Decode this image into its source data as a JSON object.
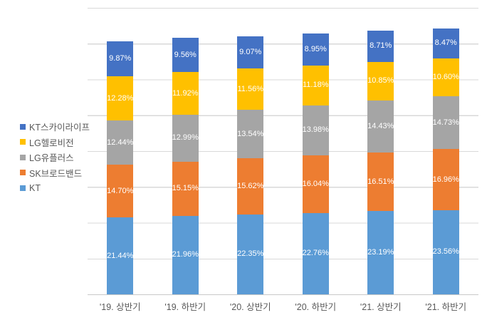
{
  "chart_data": {
    "type": "bar",
    "stacked": true,
    "title": "",
    "xlabel": "",
    "ylabel": "",
    "ylim": [
      0,
      80
    ],
    "grid_step": 10,
    "grid": true,
    "legend_position": "left",
    "categories": [
      "'19. 상반기",
      "'19. 하반기",
      "'20. 상반기",
      "'20. 하반기",
      "'21. 상반기",
      "'21. 하반기"
    ],
    "series": [
      {
        "name": "KT",
        "color": "#5B9BD5",
        "values": [
          21.44,
          21.96,
          22.35,
          22.76,
          23.19,
          23.56
        ],
        "labels": [
          "21.44%",
          "21.96%",
          "22.35%",
          "22.76%",
          "23.19%",
          "23.56%"
        ]
      },
      {
        "name": "SK브로드밴드",
        "color": "#ED7D31",
        "values": [
          14.7,
          15.15,
          15.62,
          16.04,
          16.51,
          16.96
        ],
        "labels": [
          "14.70%",
          "15.15%",
          "15.62%",
          "16.04%",
          "16.51%",
          "16.96%"
        ]
      },
      {
        "name": "LG유플러스",
        "color": "#A5A5A5",
        "values": [
          12.44,
          12.99,
          13.54,
          13.98,
          14.43,
          14.73
        ],
        "labels": [
          "12.44%",
          "12.99%",
          "13.54%",
          "13.98%",
          "14.43%",
          "14.73%"
        ]
      },
      {
        "name": "LG헬로비전",
        "color": "#FFC000",
        "values": [
          12.28,
          11.92,
          11.56,
          11.18,
          10.85,
          10.6
        ],
        "labels": [
          "12.28%",
          "11.92%",
          "11.56%",
          "11.18%",
          "10.85%",
          "10.60%"
        ]
      },
      {
        "name": "KT스카이라이프",
        "color": "#4472C4",
        "values": [
          9.87,
          9.56,
          9.07,
          8.95,
          8.71,
          8.47
        ],
        "labels": [
          "9.87%",
          "9.56%",
          "9.07%",
          "8.95%",
          "8.71%",
          "8.47%"
        ]
      }
    ]
  },
  "style": {
    "gridline_color": "#D9D9D9",
    "axis_line_color": "#C9C9C9",
    "axis_text_color": "#595959",
    "data_label_color": "#FFFFFF",
    "background": "#FFFFFF"
  }
}
